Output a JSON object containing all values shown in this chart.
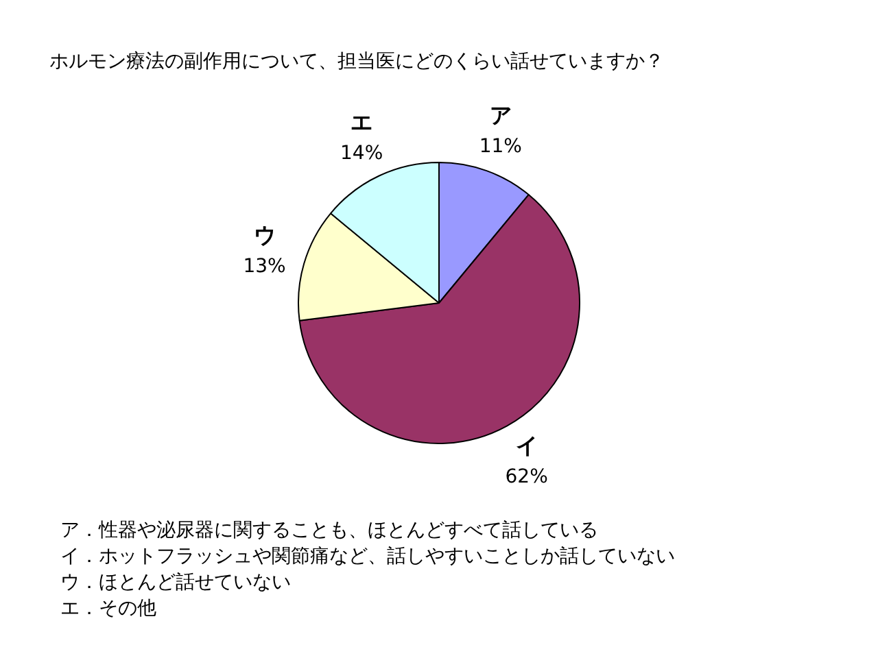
{
  "chart_data": {
    "type": "pie",
    "title": "ホルモン療法の副作用について、担当医にどのくらい話せていますか？",
    "categories": [
      "ア",
      "イ",
      "ウ",
      "エ"
    ],
    "values": [
      11,
      62,
      13,
      14
    ],
    "colors": [
      "#9999ff",
      "#993366",
      "#ffffcc",
      "#ccffff"
    ],
    "value_labels": [
      "11%",
      "62%",
      "13%",
      "14%"
    ],
    "annotations": [
      "ア．性器や泌尿器に関することも、ほとんどすべて話している",
      "イ．ホットフラッシュや関節痛など、話しやすいことしか話していない",
      "ウ．ほとんど話せていない",
      "エ．その他"
    ]
  }
}
